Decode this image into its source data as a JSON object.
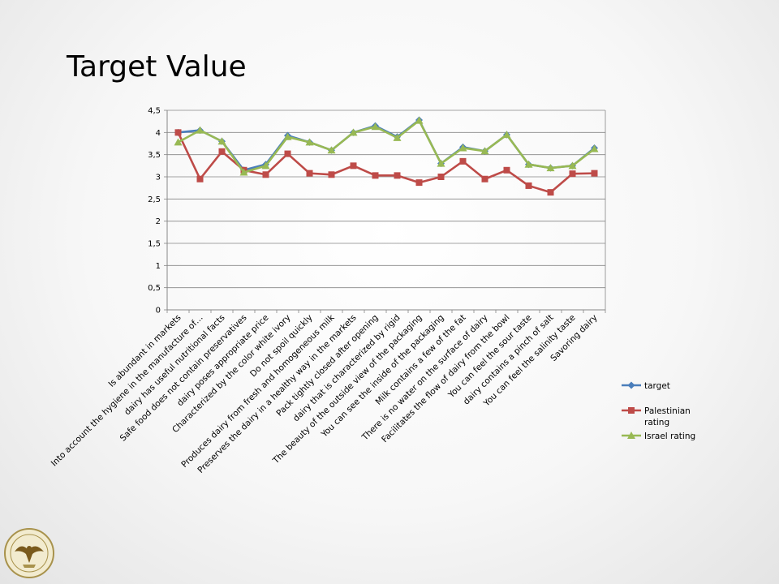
{
  "slide": {
    "title": "Target Value"
  },
  "seal": {
    "icon": "eagle-seal-icon"
  },
  "chart_data": {
    "type": "line",
    "title": "",
    "xlabel": "",
    "ylabel": "",
    "ylim": [
      0,
      4.5
    ],
    "yticks": [
      {
        "value": 0,
        "label": "0"
      },
      {
        "value": 0.5,
        "label": "0,5"
      },
      {
        "value": 1,
        "label": "1"
      },
      {
        "value": 1.5,
        "label": "1,5"
      },
      {
        "value": 2,
        "label": "2"
      },
      {
        "value": 2.5,
        "label": "2,5"
      },
      {
        "value": 3,
        "label": "3"
      },
      {
        "value": 3.5,
        "label": "3,5"
      },
      {
        "value": 4,
        "label": "4"
      },
      {
        "value": 4.5,
        "label": "4,5"
      }
    ],
    "grid": true,
    "legend_position": "right",
    "categories": [
      "Is abundant in markets",
      "Into account the hygiene in the manufacture of…",
      "dairy has useful nutritional facts",
      "Safe food does not contain preservatives",
      "dairy poses appropriate price",
      "Characterized by the color white ivory",
      "Do not spoil quickly",
      "Produces dairy from fresh and homogeneous milk",
      "Preserves the dairy in a healthy way in the markets",
      "Pack tightly closed after opening",
      "dairy that is characterized by rigid",
      "The beauty of the outside view of the packaging",
      "You can see the inside of the packaging",
      "Milk contains a few of the fat",
      "There is no water on the surface of dairy",
      "Facilitates the flow of dairy from the bowl",
      "You can feel the sour taste",
      "dairy contains a pinch of salt",
      "You can feel the salinity taste",
      "Savoring dairy"
    ],
    "series": [
      {
        "name": "target",
        "color": "#4a7ebb",
        "marker": "diamond",
        "values": [
          4.0,
          4.05,
          3.8,
          3.15,
          3.28,
          3.93,
          3.78,
          3.6,
          4.0,
          4.15,
          3.9,
          4.28,
          3.3,
          3.67,
          3.58,
          3.95,
          3.28,
          3.2,
          3.25,
          3.65
        ]
      },
      {
        "name": "Palestinian rating",
        "color": "#be4b48",
        "marker": "square",
        "values": [
          4.0,
          2.95,
          3.57,
          3.15,
          3.05,
          3.52,
          3.08,
          3.05,
          3.25,
          3.03,
          3.03,
          2.87,
          3.0,
          3.35,
          2.95,
          3.15,
          2.8,
          2.65,
          3.07,
          3.08
        ]
      },
      {
        "name": "Israel rating",
        "color": "#98b954",
        "marker": "triangle",
        "values": [
          3.78,
          4.05,
          3.8,
          3.1,
          3.25,
          3.9,
          3.78,
          3.6,
          4.0,
          4.13,
          3.88,
          4.27,
          3.3,
          3.65,
          3.58,
          3.95,
          3.28,
          3.2,
          3.25,
          3.63
        ]
      }
    ]
  }
}
